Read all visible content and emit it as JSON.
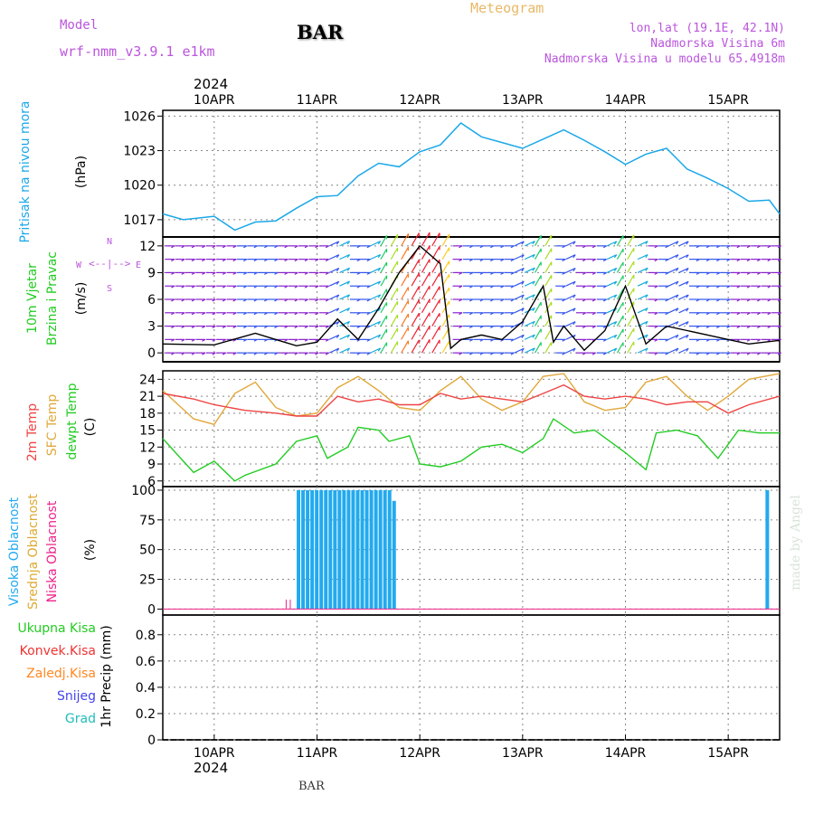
{
  "header": {
    "model_label": "Model",
    "model_name": "wrf-nmm_v3.9.1 e1km",
    "station": "BAR",
    "title": "Meteogram",
    "lonlat": "lon,lat (19.1E, 42.1N)",
    "elevation": "Nadmorska Visina 6m",
    "model_elevation": "Nadmorska Visina u modelu 65.4918m"
  },
  "footer": {
    "station": "BAR",
    "credit": "made by Angel"
  },
  "top_year": "2024",
  "bottom_year": "2024",
  "colors": {
    "pressure": "#1ba8e8",
    "temp2m": "#ee4444",
    "sfc": "#e0a83a",
    "dewpt": "#22cc22",
    "cloud_high": "#22aaee",
    "cloud_mid": "#ddaa33",
    "cloud_low": "#ee2288",
    "grid": "#888888",
    "wind_label": "#bb55dd"
  },
  "panels": {
    "pressure": {
      "label": "Pritisak na nivou mora",
      "unit": "(hPa)",
      "ticks": [
        "1026",
        "1023",
        "1020",
        "1017"
      ]
    },
    "wind": {
      "label1": "10m Vjetar",
      "label2": "Brzina i Pravac",
      "unit": "(m/s)",
      "ticks": [
        "12",
        "9",
        "6",
        "3",
        "0"
      ],
      "compass_w": "W",
      "compass_e": "E",
      "compass_n": "N",
      "compass_s": "S"
    },
    "temp": {
      "label1": "2m Temp",
      "label2": "SFC Temp",
      "label3": "dewpt Temp",
      "unit": "(C)",
      "ticks": [
        "24",
        "21",
        "18",
        "15",
        "12",
        "9",
        "6"
      ]
    },
    "cloud": {
      "label1": "Visoka Oblacnost",
      "label2": "Srednja Oblacnost",
      "label3": "Niska Oblacnost",
      "unit": "(%)",
      "ticks": [
        "100",
        "75",
        "50",
        "25",
        "0"
      ]
    },
    "precip": {
      "legend": [
        "Ukupna Kisa",
        "Konvek.Kisa",
        "Zaledj.Kisa",
        "Snijeg",
        "Grad"
      ],
      "legend_colors": [
        "#22cc22",
        "#ee3333",
        "#ff8822",
        "#4444ee",
        "#22bbbb"
      ],
      "unit": "1hr Precip (mm)",
      "ticks": [
        "0.8",
        "0.6",
        "0.4",
        "0.2",
        "0"
      ]
    }
  },
  "chart_data": [
    {
      "type": "line",
      "panel": "pressure",
      "x_dates": [
        "10APR",
        "11APR",
        "12APR",
        "13APR",
        "14APR",
        "15APR"
      ],
      "x_range_days": [
        -0.5,
        5.5
      ],
      "ylim": [
        1015.5,
        1026.5
      ],
      "ylabel": "(hPa)",
      "series": [
        {
          "x": [
            -0.5,
            -0.3,
            0.0,
            0.2,
            0.4,
            0.6,
            0.8,
            1.0,
            1.2,
            1.4,
            1.6,
            1.8,
            2.0,
            2.2,
            2.4,
            2.6,
            2.8,
            3.0,
            3.2,
            3.4,
            3.6,
            3.8,
            4.0,
            4.2,
            4.4,
            4.6,
            4.8,
            5.0,
            5.2,
            5.4,
            5.5
          ],
          "y": [
            1017.5,
            1017.0,
            1017.3,
            1016.1,
            1016.8,
            1016.9,
            1018.0,
            1019.0,
            1019.1,
            1020.8,
            1021.9,
            1021.6,
            1022.9,
            1023.5,
            1025.4,
            1024.2,
            1023.7,
            1023.2,
            1024.0,
            1024.8,
            1023.9,
            1022.9,
            1021.8,
            1022.7,
            1023.2,
            1021.4,
            1020.6,
            1019.7,
            1018.6,
            1018.7,
            1017.5
          ]
        }
      ]
    },
    {
      "type": "line",
      "panel": "wind",
      "ylim": [
        -1,
        13
      ],
      "ylabel": "(m/s)",
      "series": [
        {
          "name": "wind speed",
          "x": [
            -0.5,
            0.0,
            0.4,
            0.6,
            0.8,
            1.0,
            1.2,
            1.4,
            1.6,
            1.8,
            2.0,
            2.2,
            2.3,
            2.4,
            2.6,
            2.8,
            3.0,
            3.2,
            3.3,
            3.4,
            3.6,
            3.8,
            4.0,
            4.2,
            4.4,
            4.6,
            4.8,
            5.0,
            5.2,
            5.5
          ],
          "y": [
            1.0,
            0.9,
            2.2,
            1.5,
            0.8,
            1.2,
            3.8,
            1.5,
            5.0,
            9.0,
            12.0,
            10.0,
            0.5,
            1.5,
            2.0,
            1.5,
            3.5,
            7.5,
            1.2,
            3.0,
            0.3,
            2.5,
            7.5,
            1.0,
            3.0,
            2.5,
            2.0,
            1.5,
            1.0,
            1.4
          ]
        }
      ]
    },
    {
      "type": "line",
      "panel": "temp",
      "ylim": [
        5,
        25.5
      ],
      "ylabel": "(C)",
      "series": [
        {
          "name": "2m Temp",
          "x": [
            -0.5,
            -0.2,
            0.0,
            0.3,
            0.6,
            0.8,
            1.0,
            1.2,
            1.4,
            1.6,
            1.8,
            2.0,
            2.2,
            2.4,
            2.6,
            2.8,
            3.0,
            3.2,
            3.4,
            3.6,
            3.8,
            4.0,
            4.2,
            4.4,
            4.6,
            4.8,
            5.0,
            5.2,
            5.5
          ],
          "y": [
            21.5,
            20.5,
            19.5,
            18.5,
            18.0,
            17.5,
            17.5,
            21.0,
            20.0,
            20.5,
            19.5,
            19.5,
            21.5,
            20.5,
            21.0,
            20.5,
            20.0,
            21.5,
            23.0,
            21.0,
            20.5,
            21.0,
            20.5,
            19.5,
            20.0,
            20.0,
            18.0,
            19.5,
            21.0
          ]
        },
        {
          "name": "SFC Temp",
          "x": [
            -0.5,
            -0.2,
            0.0,
            0.2,
            0.4,
            0.6,
            0.8,
            1.0,
            1.2,
            1.4,
            1.6,
            1.8,
            2.0,
            2.2,
            2.4,
            2.6,
            2.8,
            3.0,
            3.2,
            3.4,
            3.6,
            3.8,
            4.0,
            4.2,
            4.4,
            4.6,
            4.8,
            5.0,
            5.2,
            5.5
          ],
          "y": [
            22.0,
            17.0,
            16.0,
            21.5,
            23.5,
            19.0,
            17.5,
            18.0,
            22.5,
            24.5,
            22.0,
            19.0,
            18.5,
            22.0,
            24.5,
            20.5,
            18.5,
            20.0,
            24.5,
            25.0,
            20.0,
            18.5,
            19.0,
            23.5,
            24.5,
            21.0,
            18.5,
            21.0,
            24.0,
            25.0
          ]
        },
        {
          "name": "dewpt Temp",
          "x": [
            -0.5,
            -0.3,
            -0.2,
            0.0,
            0.2,
            0.3,
            0.6,
            0.8,
            1.0,
            1.1,
            1.3,
            1.4,
            1.6,
            1.7,
            1.9,
            2.0,
            2.2,
            2.4,
            2.6,
            2.8,
            3.0,
            3.2,
            3.3,
            3.5,
            3.7,
            4.0,
            4.2,
            4.3,
            4.5,
            4.7,
            4.9,
            5.1,
            5.3,
            5.5
          ],
          "y": [
            13.5,
            9.5,
            7.5,
            9.5,
            6.0,
            7.0,
            9.0,
            13.0,
            14.0,
            10.0,
            12.0,
            15.5,
            15.0,
            13.0,
            14.0,
            9.0,
            8.5,
            9.5,
            12.0,
            12.5,
            11.0,
            13.5,
            17.0,
            14.5,
            15.0,
            11.0,
            8.0,
            14.5,
            15.0,
            14.0,
            10.0,
            15.0,
            14.5,
            14.5
          ]
        }
      ]
    },
    {
      "type": "bar",
      "panel": "cloud",
      "ylim": [
        0,
        100
      ],
      "ylabel": "(%)",
      "series": [
        {
          "name": "Visoka Oblacnost",
          "x_start": 0.82,
          "x_end": 1.75,
          "count": 22,
          "values": [
            100,
            100,
            100,
            100,
            100,
            100,
            100,
            100,
            100,
            100,
            100,
            100,
            100,
            100,
            100,
            100,
            100,
            100,
            100,
            100,
            100,
            91
          ]
        },
        {
          "name": "Visoka Oblacnost (late)",
          "x": [
            5.38
          ],
          "values": [
            100
          ]
        },
        {
          "name": "Niska Oblacnost",
          "x": [
            0.7,
            0.74
          ],
          "values": [
            8,
            8
          ]
        }
      ]
    },
    {
      "type": "bar",
      "panel": "precip",
      "ylim": [
        0,
        0.95
      ],
      "ylabel": "1hr Precip (mm)",
      "series": [
        {
          "name": "Ukupna Kisa",
          "values": []
        }
      ]
    }
  ]
}
